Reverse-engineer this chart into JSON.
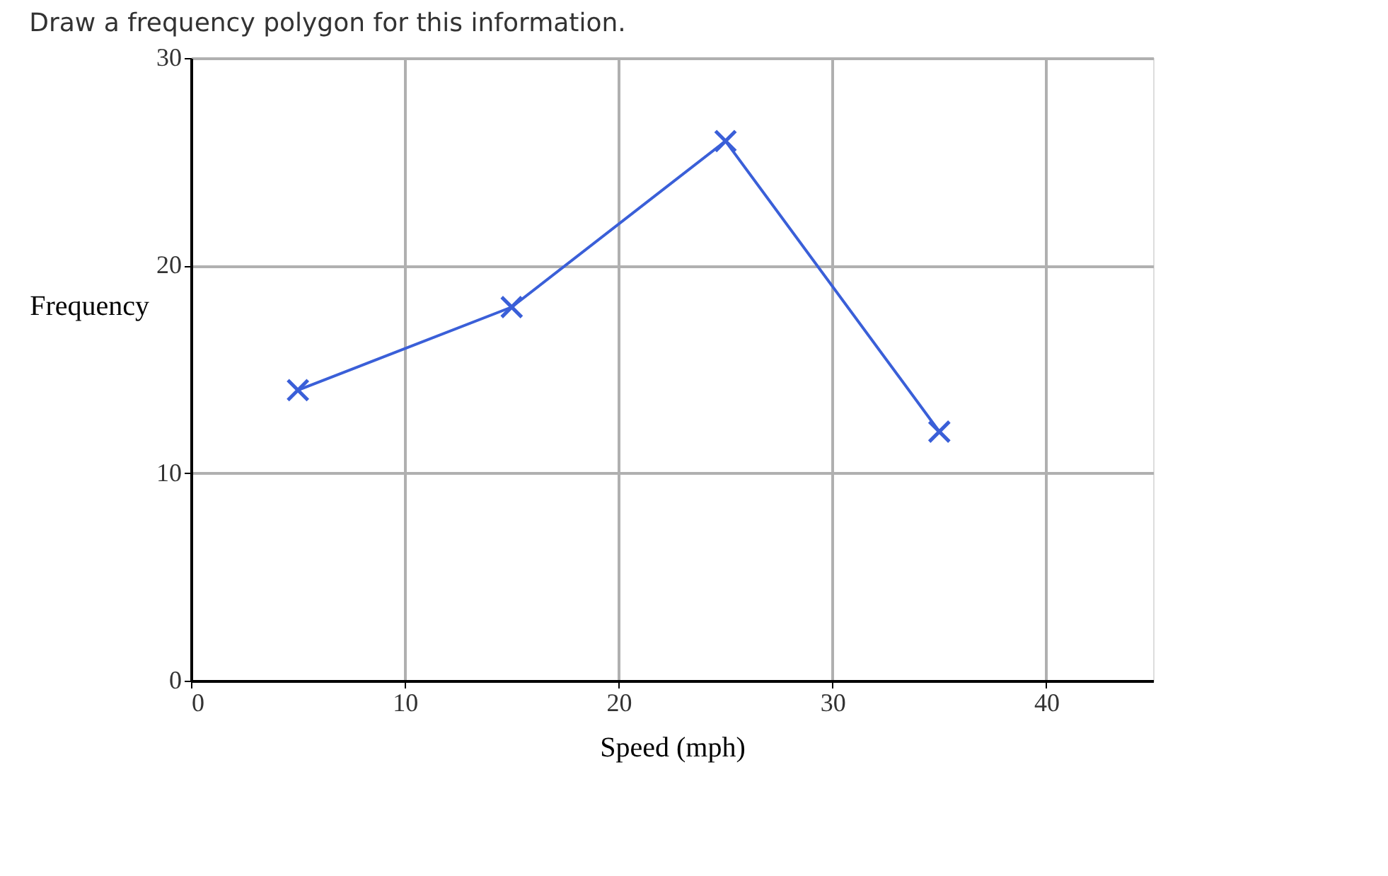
{
  "chart_data": {
    "type": "line",
    "title": "Draw a frequency polygon for this information.",
    "xlabel": "Speed (mph)",
    "ylabel": "Frequency",
    "x": [
      5,
      15,
      25,
      35
    ],
    "series": [
      {
        "color": "#3a5fd8",
        "values": [
          14,
          18,
          26,
          12
        ]
      }
    ],
    "xlim": [
      0,
      45
    ],
    "xticks": [
      0,
      10,
      20,
      30,
      40
    ],
    "ylim": [
      0,
      30
    ],
    "yticks": [
      0,
      10,
      20,
      30
    ],
    "grid": true,
    "marker": "cross",
    "line_style": "solid"
  }
}
